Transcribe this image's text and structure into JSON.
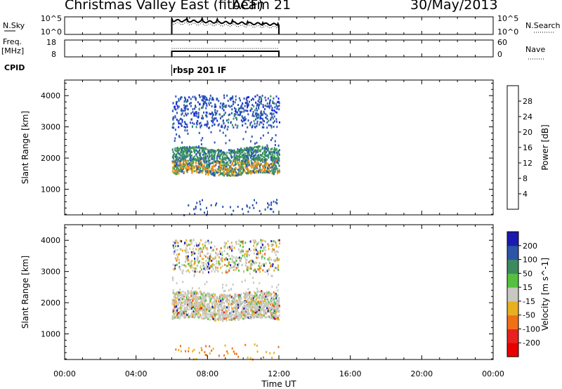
{
  "header": {
    "title": "Christmas Valley East (fitACF)",
    "beam": "beam 21",
    "date": "30/May/2013"
  },
  "panels": {
    "nsky": {
      "left_label": "N.Sky",
      "left_ticks": [
        "10^5",
        "10^0"
      ],
      "right_ticks": [
        "10^5",
        "10^0"
      ],
      "right_label": "N.Search"
    },
    "freq": {
      "left_label_1": "Freq.",
      "left_label_2": "[MHz]",
      "left_ticks": [
        "18",
        "8"
      ],
      "right_ticks": [
        "60",
        "0"
      ],
      "right_label": "Nave"
    },
    "cpid": {
      "label": "CPID",
      "program": "rbsp 201 IF"
    }
  },
  "axes": {
    "ylabel": "Slant Range [km]",
    "xlabel": "Time UT",
    "x_ticks": [
      "00:00",
      "04:00",
      "08:00",
      "12:00",
      "16:00",
      "20:00",
      "00:00"
    ],
    "y_ticks": [
      "1000",
      "2000",
      "3000",
      "4000"
    ]
  },
  "colorbars": {
    "power": {
      "label": "Power [dB]",
      "ticks": [
        "4",
        "8",
        "12",
        "16",
        "20",
        "24",
        "28"
      ],
      "colors": [
        "#1a1af0",
        "#2a55b5",
        "#3b8c64",
        "#3fa05a",
        "#e0a010",
        "#f08020",
        "#f05010",
        "#e81010"
      ]
    },
    "velocity": {
      "label": "Velocity [m s^-1]",
      "ticks": [
        "200",
        "100",
        "50",
        "15",
        "-15",
        "-50",
        "-100",
        "-200"
      ],
      "colors": [
        "#1a1ab0",
        "#2c55a5",
        "#3d8a60",
        "#55c040",
        "#c8c8c0",
        "#e8b020",
        "#f07018",
        "#e82020",
        "#e80000"
      ]
    }
  },
  "chart_data": [
    {
      "type": "heatmap",
      "title": "Power",
      "xlabel": "Time UT",
      "ylabel": "Slant Range [km]",
      "xlim": [
        0,
        24
      ],
      "ylim": [
        180,
        4500
      ],
      "data_window_hours": [
        6.0,
        12.0
      ],
      "colorbar_range_dB": [
        0,
        32
      ],
      "bands": [
        {
          "range_km": [
            3000,
            4100
          ],
          "value_dB": 6
        },
        {
          "range_km": [
            1500,
            2400
          ],
          "value_dB": 14
        },
        {
          "range_km": [
            1600,
            1900
          ],
          "value_dB": 22
        },
        {
          "range_km": [
            180,
            600
          ],
          "value_dB": 5
        }
      ]
    },
    {
      "type": "heatmap",
      "title": "Velocity",
      "xlabel": "Time UT",
      "ylabel": "Slant Range [km]",
      "xlim": [
        0,
        24
      ],
      "ylim": [
        180,
        4500
      ],
      "data_window_hours": [
        6.0,
        12.0
      ],
      "colorbar_range_ms": [
        -250,
        250
      ],
      "bands": [
        {
          "range_km": [
            3000,
            4100
          ],
          "value_ms": 10
        },
        {
          "range_km": [
            1500,
            2400
          ],
          "value_ms": 0
        },
        {
          "range_km": [
            180,
            600
          ],
          "value_ms": -20
        }
      ]
    }
  ]
}
